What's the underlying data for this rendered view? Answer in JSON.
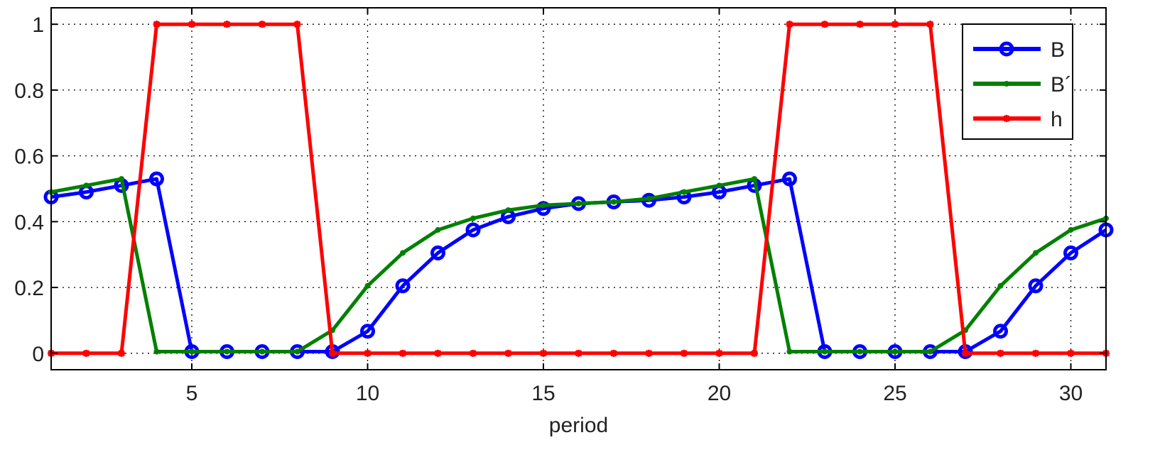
{
  "chart_data": {
    "type": "line",
    "title": "",
    "xlabel": "period",
    "ylabel": "",
    "xlim": [
      1,
      31
    ],
    "ylim": [
      -0.05,
      1.05
    ],
    "x_ticks": [
      5,
      10,
      15,
      20,
      25,
      30
    ],
    "y_ticks": [
      0,
      0.2,
      0.4,
      0.6,
      0.8,
      1
    ],
    "y_tick_labels": [
      "0",
      "0.2",
      "0.4",
      "0.6",
      "0.8",
      "1"
    ],
    "grid": true,
    "legend_position": "top-right",
    "x": [
      1,
      2,
      3,
      4,
      5,
      6,
      7,
      8,
      9,
      10,
      11,
      12,
      13,
      14,
      15,
      16,
      17,
      18,
      19,
      20,
      21,
      22,
      23,
      24,
      25,
      26,
      27,
      28,
      29,
      30,
      31
    ],
    "series": [
      {
        "name": "B",
        "color": "#0000ff",
        "marker": "circle",
        "values": [
          0.475,
          0.49,
          0.51,
          0.53,
          0.005,
          0.005,
          0.005,
          0.005,
          0.005,
          0.067,
          0.205,
          0.305,
          0.375,
          0.415,
          0.44,
          0.455,
          0.46,
          0.465,
          0.475,
          0.49,
          0.51,
          0.53,
          0.005,
          0.005,
          0.005,
          0.005,
          0.005,
          0.067,
          0.205,
          0.305,
          0.375
        ]
      },
      {
        "name": "B´",
        "color": "#008000",
        "marker": "point",
        "values": [
          0.49,
          0.51,
          0.53,
          0.005,
          0.005,
          0.005,
          0.005,
          0.005,
          0.07,
          0.205,
          0.305,
          0.375,
          0.41,
          0.435,
          0.45,
          0.455,
          0.46,
          0.47,
          0.49,
          0.51,
          0.53,
          0.005,
          0.005,
          0.005,
          0.005,
          0.005,
          0.07,
          0.205,
          0.305,
          0.375,
          0.41
        ]
      },
      {
        "name": "h",
        "color": "#ff0000",
        "marker": "star",
        "values": [
          0,
          0,
          0,
          1,
          1,
          1,
          1,
          1,
          0,
          0,
          0,
          0,
          0,
          0,
          0,
          0,
          0,
          0,
          0,
          0,
          0,
          1,
          1,
          1,
          1,
          1,
          0,
          0,
          0,
          0,
          0
        ]
      }
    ]
  }
}
